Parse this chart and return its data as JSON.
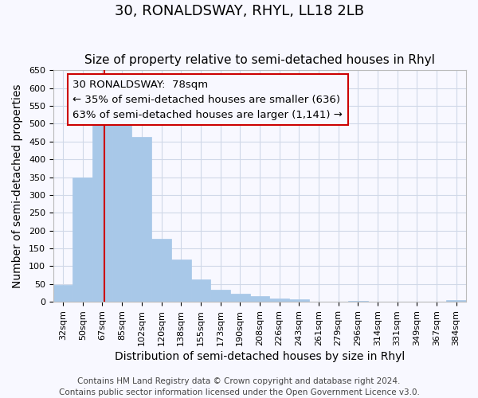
{
  "title": "30, RONALDSWAY, RHYL, LL18 2LB",
  "subtitle": "Size of property relative to semi-detached houses in Rhyl",
  "xlabel": "Distribution of semi-detached houses by size in Rhyl",
  "ylabel": "Number of semi-detached properties",
  "footer_lines": [
    "Contains HM Land Registry data © Crown copyright and database right 2024.",
    "Contains public sector information licensed under the Open Government Licence v3.0."
  ],
  "bin_labels": [
    "32sqm",
    "50sqm",
    "67sqm",
    "85sqm",
    "102sqm",
    "120sqm",
    "138sqm",
    "155sqm",
    "173sqm",
    "190sqm",
    "208sqm",
    "226sqm",
    "243sqm",
    "261sqm",
    "279sqm",
    "296sqm",
    "314sqm",
    "331sqm",
    "349sqm",
    "367sqm",
    "384sqm"
  ],
  "bar_heights": [
    47,
    348,
    535,
    535,
    463,
    178,
    118,
    62,
    35,
    22,
    15,
    10,
    8,
    0,
    0,
    3,
    0,
    0,
    0,
    0,
    5
  ],
  "bar_color": "#a8c8e8",
  "bar_edge_color": "#a8c8e8",
  "annotation_box_text": "30 RONALDSWAY:  78sqm\n← 35% of semi-detached houses are smaller (636)\n63% of semi-detached houses are larger (1,141) →",
  "ylim": [
    0,
    650
  ],
  "yticks": [
    0,
    50,
    100,
    150,
    200,
    250,
    300,
    350,
    400,
    450,
    500,
    550,
    600,
    650
  ],
  "grid_color": "#d0d8e8",
  "background_color": "#f8f8ff",
  "line_color": "#cc0000",
  "box_edge_color": "#cc0000",
  "title_fontsize": 13,
  "subtitle_fontsize": 11,
  "axis_label_fontsize": 10,
  "tick_fontsize": 8,
  "annotation_fontsize": 9.5,
  "footer_fontsize": 7.5
}
